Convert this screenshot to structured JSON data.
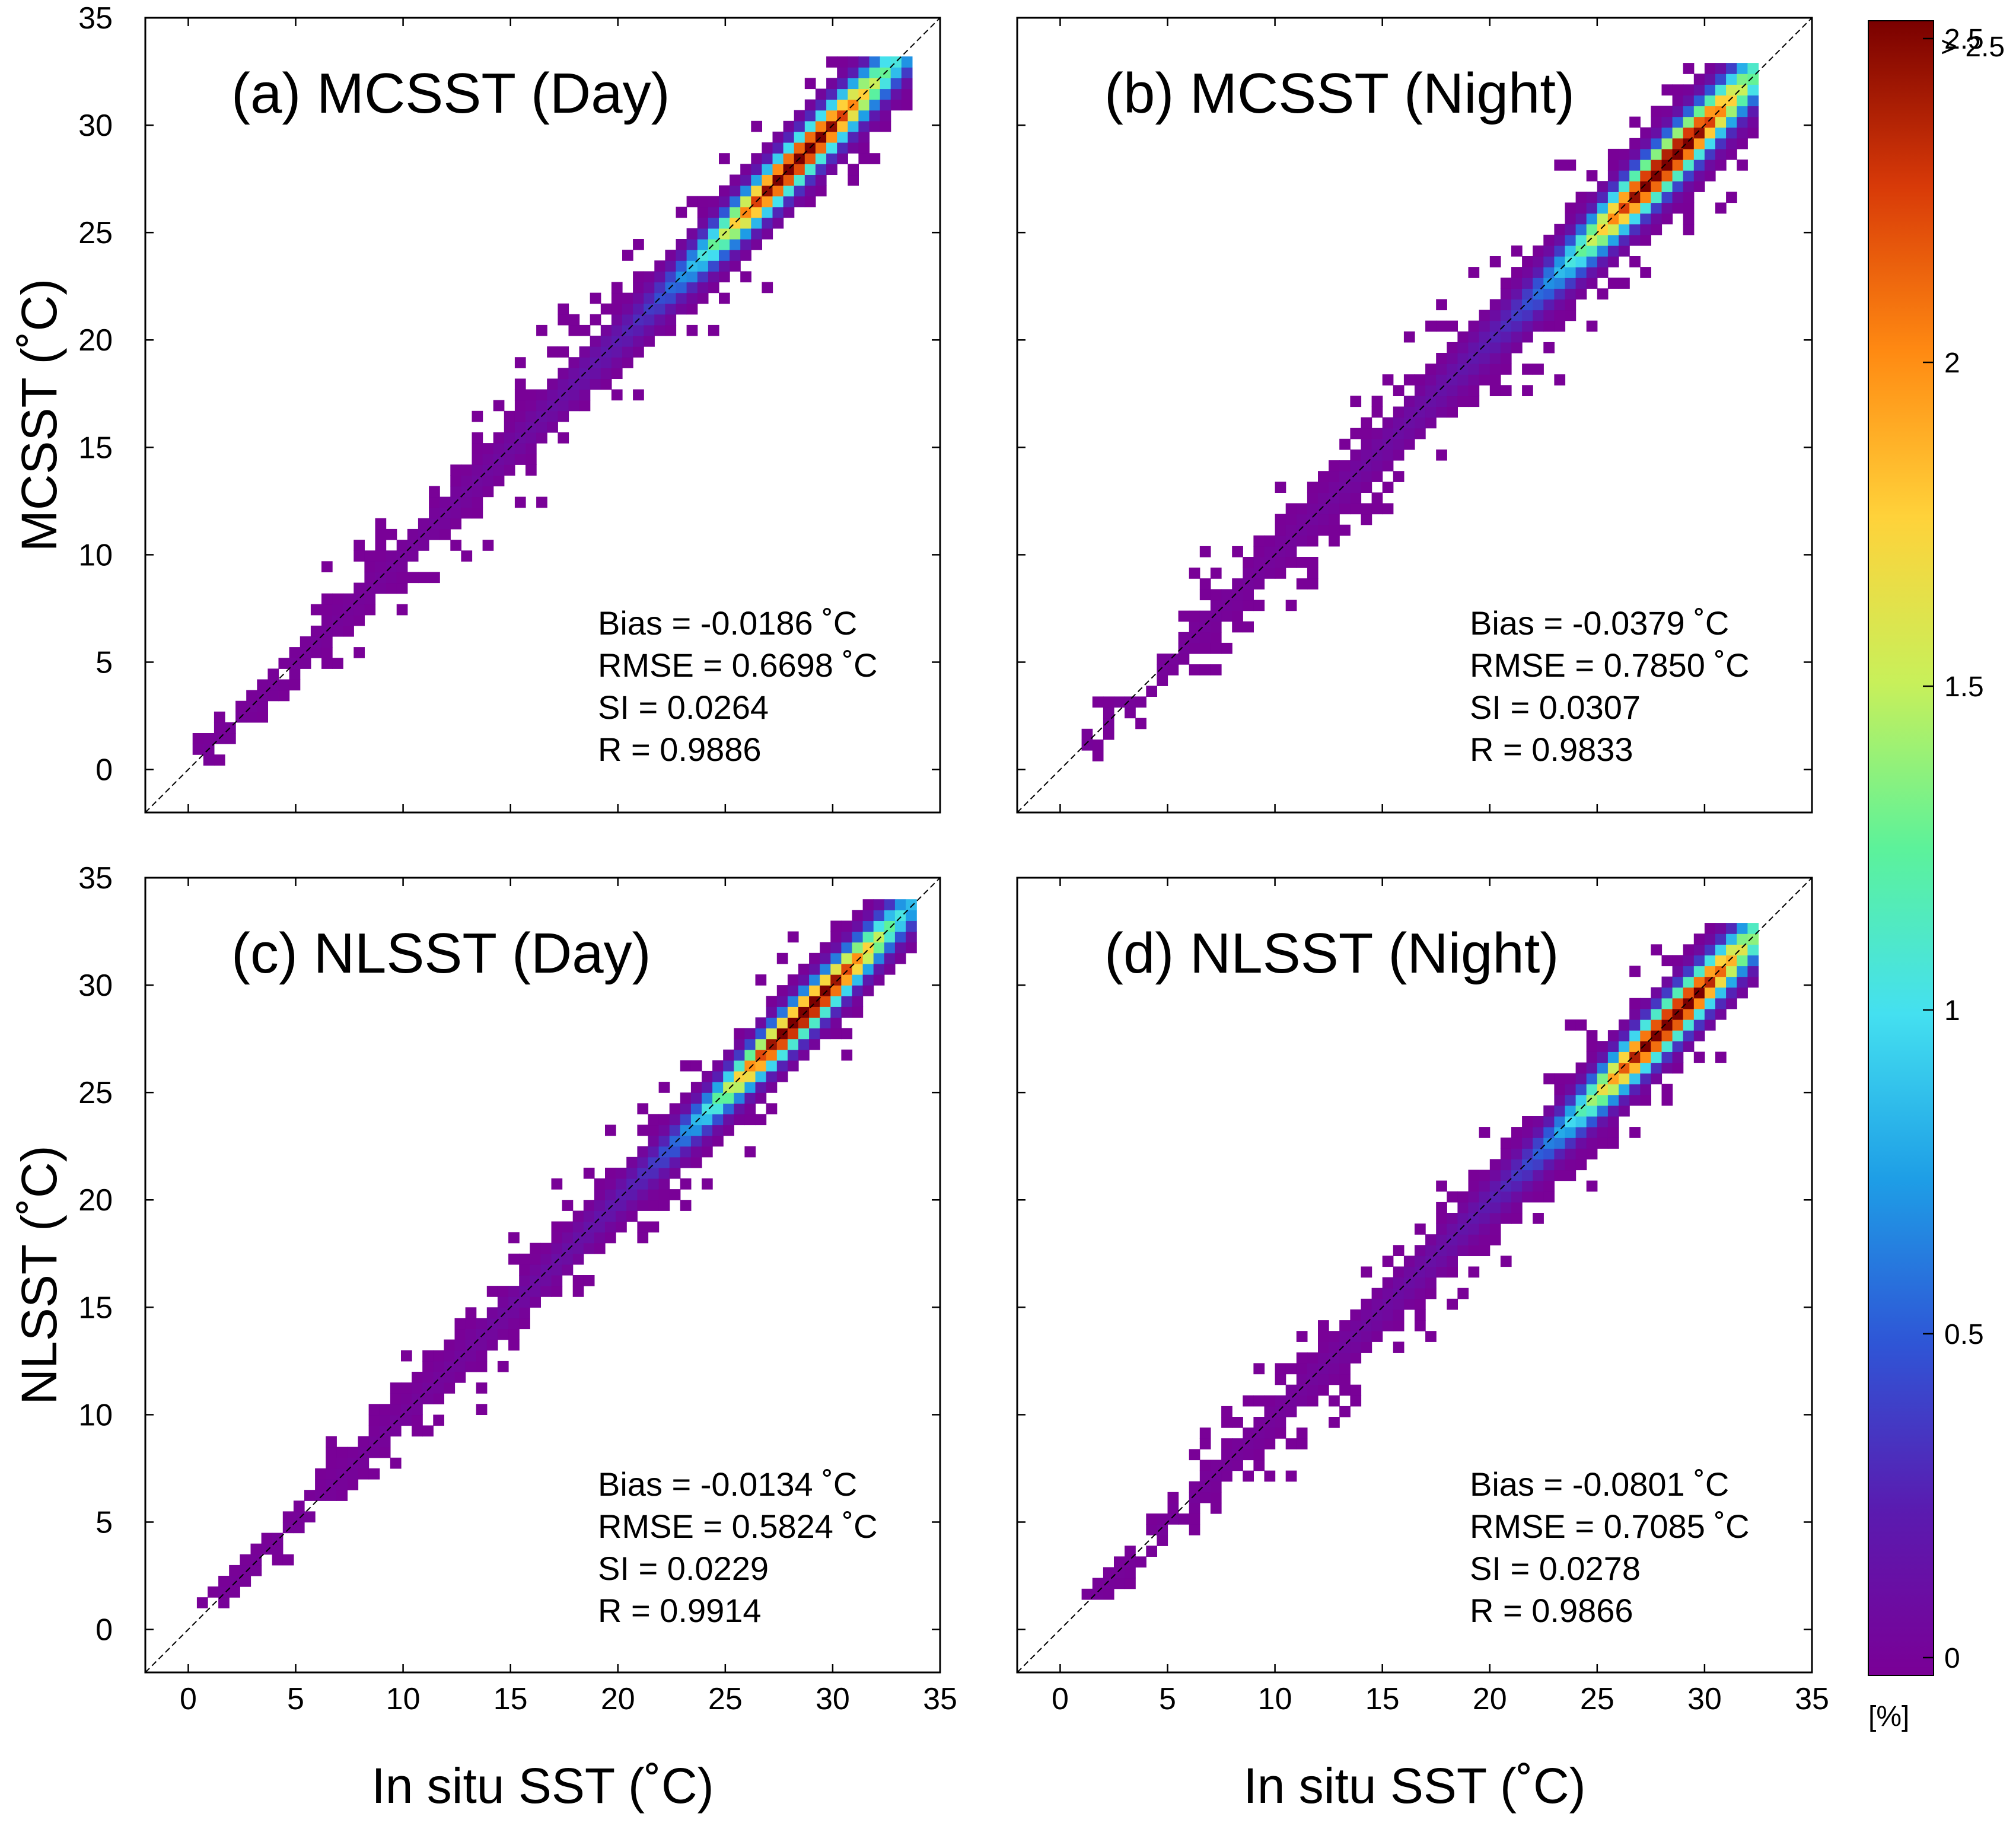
{
  "chart_data": {
    "type": "heatmap",
    "description_units": "density of matchups in percent",
    "colorbar": {
      "min": 0,
      "max": 2.5,
      "ticks": [
        0,
        0.5,
        1,
        1.5,
        2,
        2.5
      ],
      "tick_labels": [
        "0",
        "0.5",
        "1",
        "1.5",
        "2",
        "2.5"
      ],
      "overflow_label": "> 2.5",
      "unit_label": "[%]",
      "colors": [
        "#7a0096",
        "#5a1bb0",
        "#2f55d6",
        "#1e9ee6",
        "#44e0f0",
        "#5cf29a",
        "#c8f05a",
        "#ffd23a",
        "#ff8a12",
        "#d83a08",
        "#7a0000"
      ]
    },
    "panels": [
      {
        "title": "(a) MCSST (Day)",
        "ylabel": "MCSST (˚C)",
        "xlabel": "",
        "xlim": [
          -2,
          35
        ],
        "ylim": [
          -2,
          35
        ],
        "ticks": [
          0,
          5,
          10,
          15,
          20,
          25,
          30,
          35
        ],
        "show_x_tick_labels": false,
        "show_y_tick_labels": true,
        "stats": [
          "Bias = -0.0186 ˚C",
          "RMSE = 0.6698 ˚C",
          "SI = 0.0264",
          "R = 0.9886"
        ],
        "density": {
          "x_range": [
            0.2,
            33.5
          ],
          "y_range": [
            0.2,
            33.0
          ],
          "peak_x": 28.2,
          "peak_y": 28.0,
          "peak_value": 2.6,
          "bias": -0.0186,
          "rmse": 0.6698,
          "seed": 11
        }
      },
      {
        "title": "(b) MCSST (Night)",
        "ylabel": "",
        "xlabel": "",
        "xlim": [
          -2,
          35
        ],
        "ylim": [
          -2,
          35
        ],
        "ticks": [
          0,
          5,
          10,
          15,
          20,
          25,
          30,
          35
        ],
        "show_x_tick_labels": false,
        "show_y_tick_labels": false,
        "stats": [
          "Bias = -0.0379 ˚C",
          "RMSE = 0.7850 ˚C",
          "SI = 0.0307",
          "R = 0.9833"
        ],
        "density": {
          "x_range": [
            1.0,
            32.2
          ],
          "y_range": [
            0.4,
            32.5
          ],
          "peak_x": 28.0,
          "peak_y": 27.8,
          "peak_value": 2.6,
          "bias": -0.0379,
          "rmse": 0.785,
          "seed": 23
        }
      },
      {
        "title": "(c) NLSST (Day)",
        "ylabel": "NLSST (˚C)",
        "xlabel": "In situ SST (˚C)",
        "xlim": [
          -2,
          35
        ],
        "ylim": [
          -2,
          35
        ],
        "ticks": [
          0,
          5,
          10,
          15,
          20,
          25,
          30,
          35
        ],
        "show_x_tick_labels": true,
        "show_y_tick_labels": true,
        "stats": [
          "Bias = -0.0134 ˚C",
          "RMSE = 0.5824 ˚C",
          "SI = 0.0229",
          "R = 0.9914"
        ],
        "density": {
          "x_range": [
            0.4,
            33.8
          ],
          "y_range": [
            1.0,
            33.5
          ],
          "peak_x": 28.4,
          "peak_y": 28.3,
          "peak_value": 2.6,
          "bias": -0.0134,
          "rmse": 0.5824,
          "seed": 37
        }
      },
      {
        "title": "(d) NLSST (Night)",
        "ylabel": "",
        "xlabel": "In situ SST (˚C)",
        "xlim": [
          -2,
          35
        ],
        "ylim": [
          -2,
          35
        ],
        "ticks": [
          0,
          5,
          10,
          15,
          20,
          25,
          30,
          35
        ],
        "show_x_tick_labels": true,
        "show_y_tick_labels": false,
        "stats": [
          "Bias = -0.0801 ˚C",
          "RMSE = 0.7085 ˚C",
          "SI = 0.0278",
          "R = 0.9866"
        ],
        "density": {
          "x_range": [
            1.0,
            32.2
          ],
          "y_range": [
            1.4,
            32.5
          ],
          "peak_x": 28.2,
          "peak_y": 28.1,
          "peak_value": 2.6,
          "bias": -0.0801,
          "rmse": 0.7085,
          "seed": 53
        }
      }
    ]
  }
}
